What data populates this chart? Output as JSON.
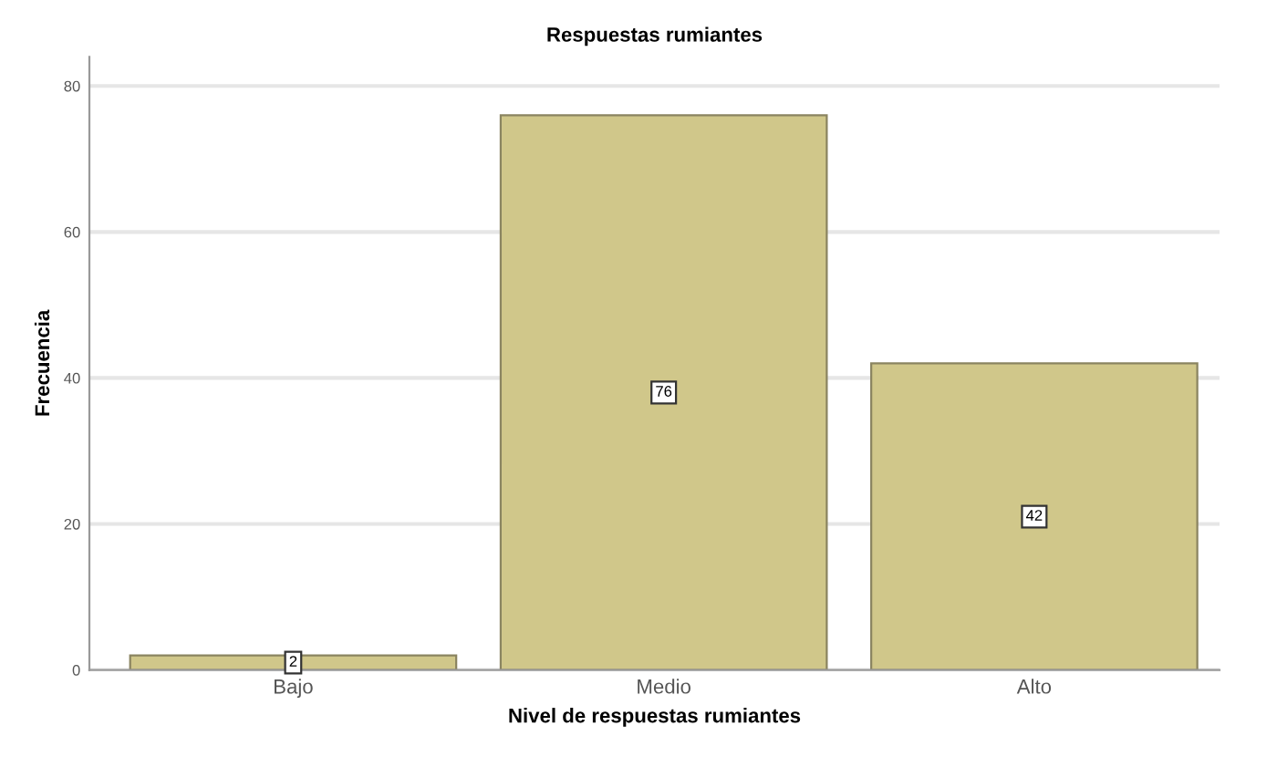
{
  "chart_data": {
    "type": "bar",
    "title": "Respuestas rumiantes",
    "xlabel": "Nivel de respuestas rumiantes",
    "ylabel": "Frecuencia",
    "categories": [
      "Bajo",
      "Medio",
      "Alto"
    ],
    "values": [
      2,
      76,
      42
    ],
    "color": "#d0c78a",
    "ylim": [
      0,
      84
    ],
    "yticks": [
      0,
      20,
      40,
      60,
      80
    ],
    "grid": "y",
    "data_labels": true
  }
}
